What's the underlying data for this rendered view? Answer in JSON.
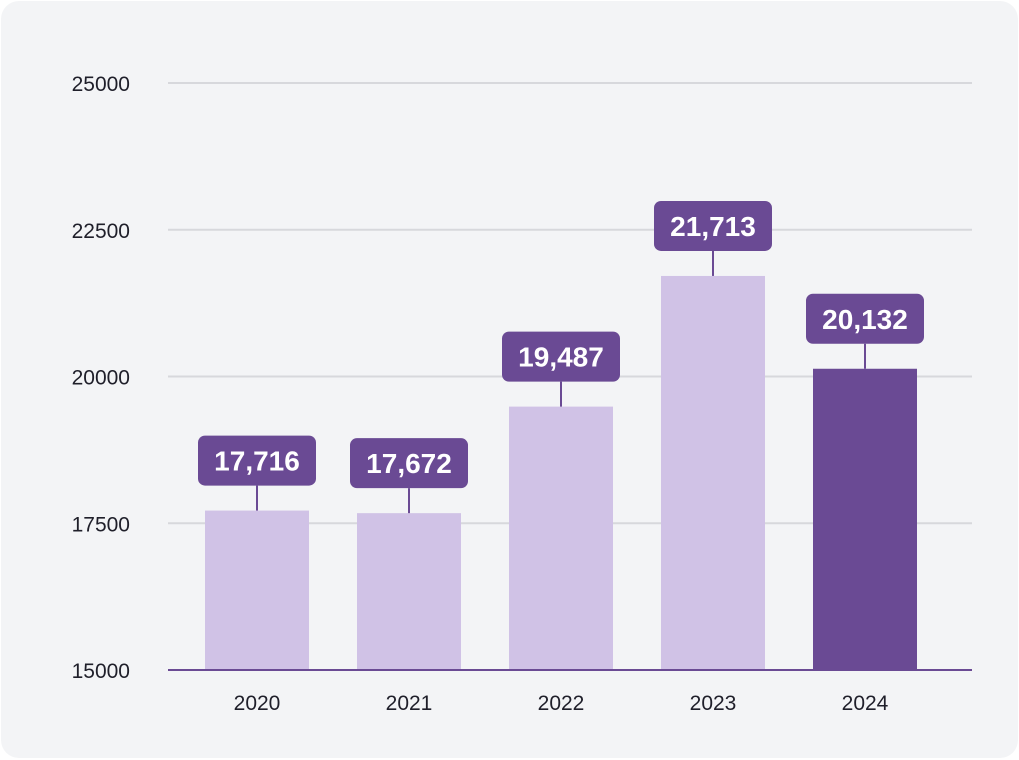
{
  "chart_data": {
    "type": "bar",
    "categories": [
      "2020",
      "2021",
      "2022",
      "2023",
      "2024"
    ],
    "values": [
      17716,
      17672,
      19487,
      21713,
      20132
    ],
    "value_labels": [
      "17,716",
      "17,672",
      "19,487",
      "21,713",
      "20,132"
    ],
    "yticks": [
      "15000",
      "17500",
      "20000",
      "22500",
      "25000"
    ],
    "ylim": [
      15000,
      25000
    ],
    "grid": true,
    "highlight_index": 4,
    "colors": {
      "bar": "#d0c2e6",
      "bar_highlight": "#6a4a94",
      "label_bg": "#6a4a94",
      "label_text": "#ffffff",
      "grid": "#d7d8dc",
      "axis": "#6a4a94"
    }
  }
}
